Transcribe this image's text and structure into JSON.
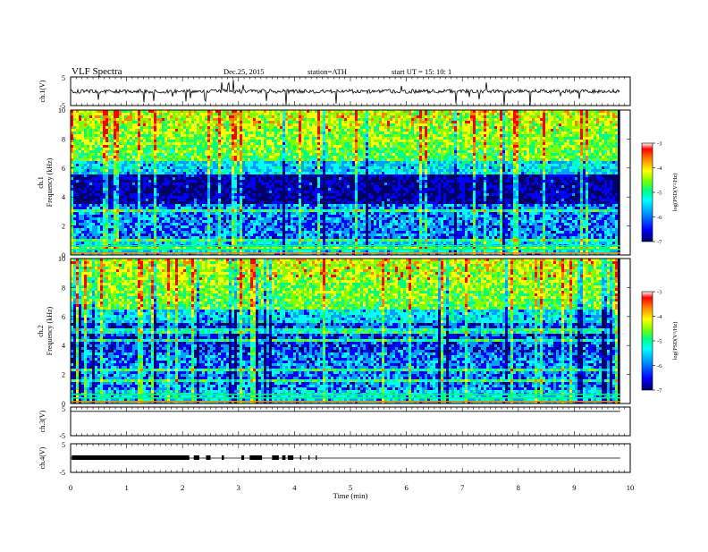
{
  "header": {
    "title": "VLF  Spectra",
    "date": "Dec.25, 2015",
    "station": "station=ATH",
    "start": "start  UT  =    15: 10: 1"
  },
  "chart_data": [
    {
      "type": "line",
      "panel": "ch1-waveform",
      "ylabel": "ch.1(V)",
      "ylim": [
        -5,
        5
      ],
      "yticks": [
        "5",
        "-5"
      ],
      "xlim": [
        0,
        10
      ],
      "baseline": 0,
      "note": "noisy voltage trace with sparse negative spikes"
    },
    {
      "type": "heatmap",
      "panel": "ch1-spectrogram",
      "ylabel": "ch.1\nFrequency  (kHz)",
      "ylabel_lines": [
        "ch.1",
        "Frequency  (kHz)"
      ],
      "ylim": [
        0,
        10
      ],
      "yticks": [
        "10",
        "8",
        "6",
        "4",
        "2",
        "0"
      ],
      "xlim": [
        0,
        10
      ],
      "colorbar": {
        "label": "log(PSD(V²/Hz)",
        "range": [
          -7,
          -3
        ],
        "ticks": [
          "-3",
          "-4",
          "-5",
          "-6",
          "-7"
        ]
      }
    },
    {
      "type": "heatmap",
      "panel": "ch2-spectrogram",
      "ylabel": "ch.2\nFrequency  (kHz)",
      "ylabel_lines": [
        "ch.2",
        "Frequency  (kHz)"
      ],
      "ylim": [
        0,
        10
      ],
      "yticks": [
        "10",
        "8",
        "6",
        "4",
        "2",
        "0"
      ],
      "xlim": [
        0,
        10
      ],
      "colorbar": {
        "label": "log(PSD(V²/Hz)",
        "range": [
          -7,
          -3
        ],
        "ticks": [
          "-3",
          "-4",
          "-5",
          "-6",
          "-7"
        ]
      }
    },
    {
      "type": "line",
      "panel": "ch3-waveform",
      "ylabel": "ch.3(V)",
      "ylim": [
        -5,
        5
      ],
      "yticks": [
        "5",
        "-5"
      ],
      "xlim": [
        0,
        10
      ],
      "baseline": 3.5
    },
    {
      "type": "line",
      "panel": "ch4-waveform",
      "ylabel": "ch.4(V)",
      "ylim": [
        -5,
        5
      ],
      "yticks": [
        "5",
        "-5"
      ],
      "xlim": [
        0,
        10
      ],
      "baseline": 0,
      "bursts_min": [
        [
          0.02,
          2.12
        ],
        [
          2.2,
          2.3
        ],
        [
          2.42,
          2.5
        ],
        [
          2.7,
          2.74
        ],
        [
          3.05,
          3.1
        ],
        [
          3.2,
          3.42
        ],
        [
          3.6,
          3.72
        ],
        [
          3.78,
          3.84
        ],
        [
          3.88,
          3.98
        ],
        [
          4.1,
          4.12
        ],
        [
          4.25,
          4.27
        ],
        [
          4.38,
          4.4
        ]
      ]
    }
  ],
  "x_axis": {
    "label": "Time  (min)",
    "ticks": [
      "0",
      "1",
      "2",
      "3",
      "4",
      "5",
      "6",
      "7",
      "8",
      "9",
      "10"
    ],
    "range": [
      0,
      10
    ],
    "data_end": 9.82
  },
  "colors": {
    "colormap": [
      "#000066",
      "#0000ff",
      "#00a0ff",
      "#00ffff",
      "#00ff80",
      "#80ff00",
      "#ffff00",
      "#ff8000",
      "#ff0000",
      "#ffffff"
    ]
  }
}
